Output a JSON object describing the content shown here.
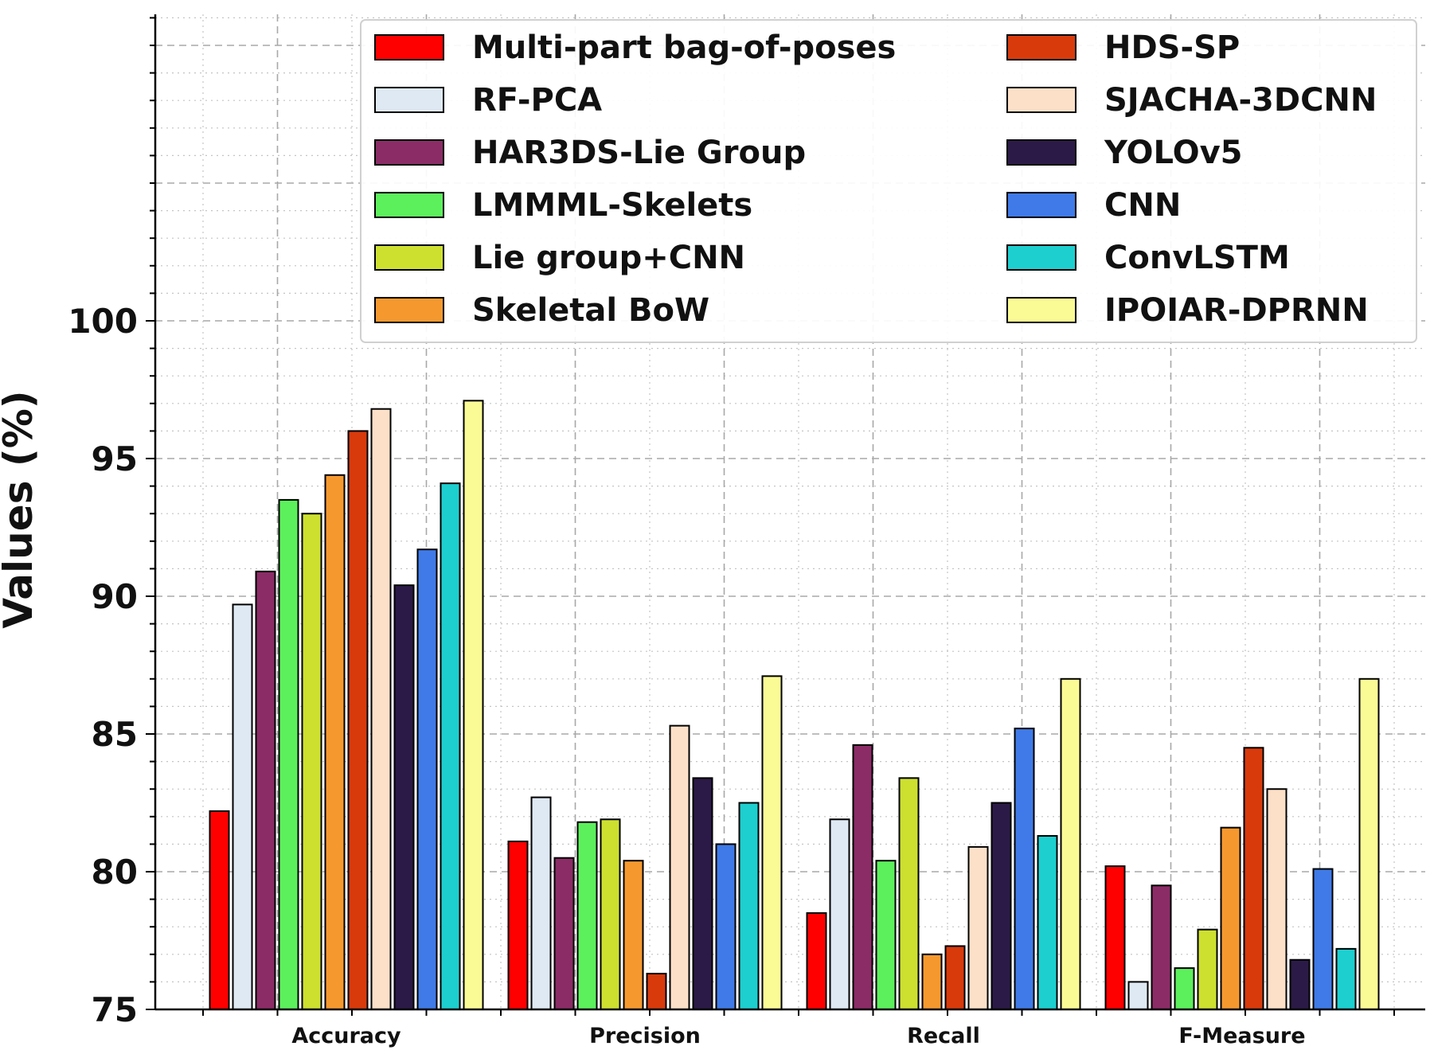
{
  "chart_data": {
    "type": "bar",
    "title": "",
    "xlabel": "",
    "ylabel": "Values (%)",
    "ylim": [
      75,
      100
    ],
    "yticks": [
      75,
      80,
      85,
      90,
      95,
      100
    ],
    "grid": true,
    "legend_placement": "top-right",
    "legend_columns": 2,
    "categories": [
      "Accuracy",
      "Precision",
      "Recall",
      "F-Measure"
    ],
    "series": [
      {
        "name": "Multi-part bag-of-poses",
        "color": "#ff0000",
        "values": [
          82.2,
          81.1,
          78.5,
          80.2
        ]
      },
      {
        "name": "RF-PCA",
        "color": "#dfe9f3",
        "values": [
          89.7,
          82.7,
          81.9,
          76.0
        ]
      },
      {
        "name": "HAR3DS-Lie Group",
        "color": "#8b2c66",
        "values": [
          90.9,
          80.5,
          84.6,
          79.5
        ]
      },
      {
        "name": "LMMML-Skelets",
        "color": "#5cf05c",
        "values": [
          93.5,
          81.8,
          80.4,
          76.5
        ]
      },
      {
        "name": "Lie group+CNN",
        "color": "#cde030",
        "values": [
          93.0,
          81.9,
          83.4,
          77.9
        ]
      },
      {
        "name": "Skeletal BoW",
        "color": "#f5992f",
        "values": [
          94.4,
          80.4,
          77.0,
          81.6
        ]
      },
      {
        "name": "HDS-SP",
        "color": "#d83a0c",
        "values": [
          96.0,
          76.3,
          77.3,
          84.5
        ]
      },
      {
        "name": "SJACHA-3DCNN",
        "color": "#fde0c8",
        "values": [
          96.8,
          85.3,
          80.9,
          83.0
        ]
      },
      {
        "name": "YOLOv5",
        "color": "#2b1a47",
        "values": [
          90.4,
          83.4,
          82.5,
          76.8
        ]
      },
      {
        "name": "CNN",
        "color": "#3f7ae8",
        "values": [
          91.7,
          81.0,
          85.2,
          80.1
        ]
      },
      {
        "name": "ConvLSTM",
        "color": "#1dcfcf",
        "values": [
          94.1,
          82.5,
          81.3,
          77.2
        ]
      },
      {
        "name": "IPOIAR-DPRNN",
        "color": "#fbfb96",
        "values": [
          97.1,
          87.1,
          87.0,
          87.0
        ]
      }
    ]
  }
}
